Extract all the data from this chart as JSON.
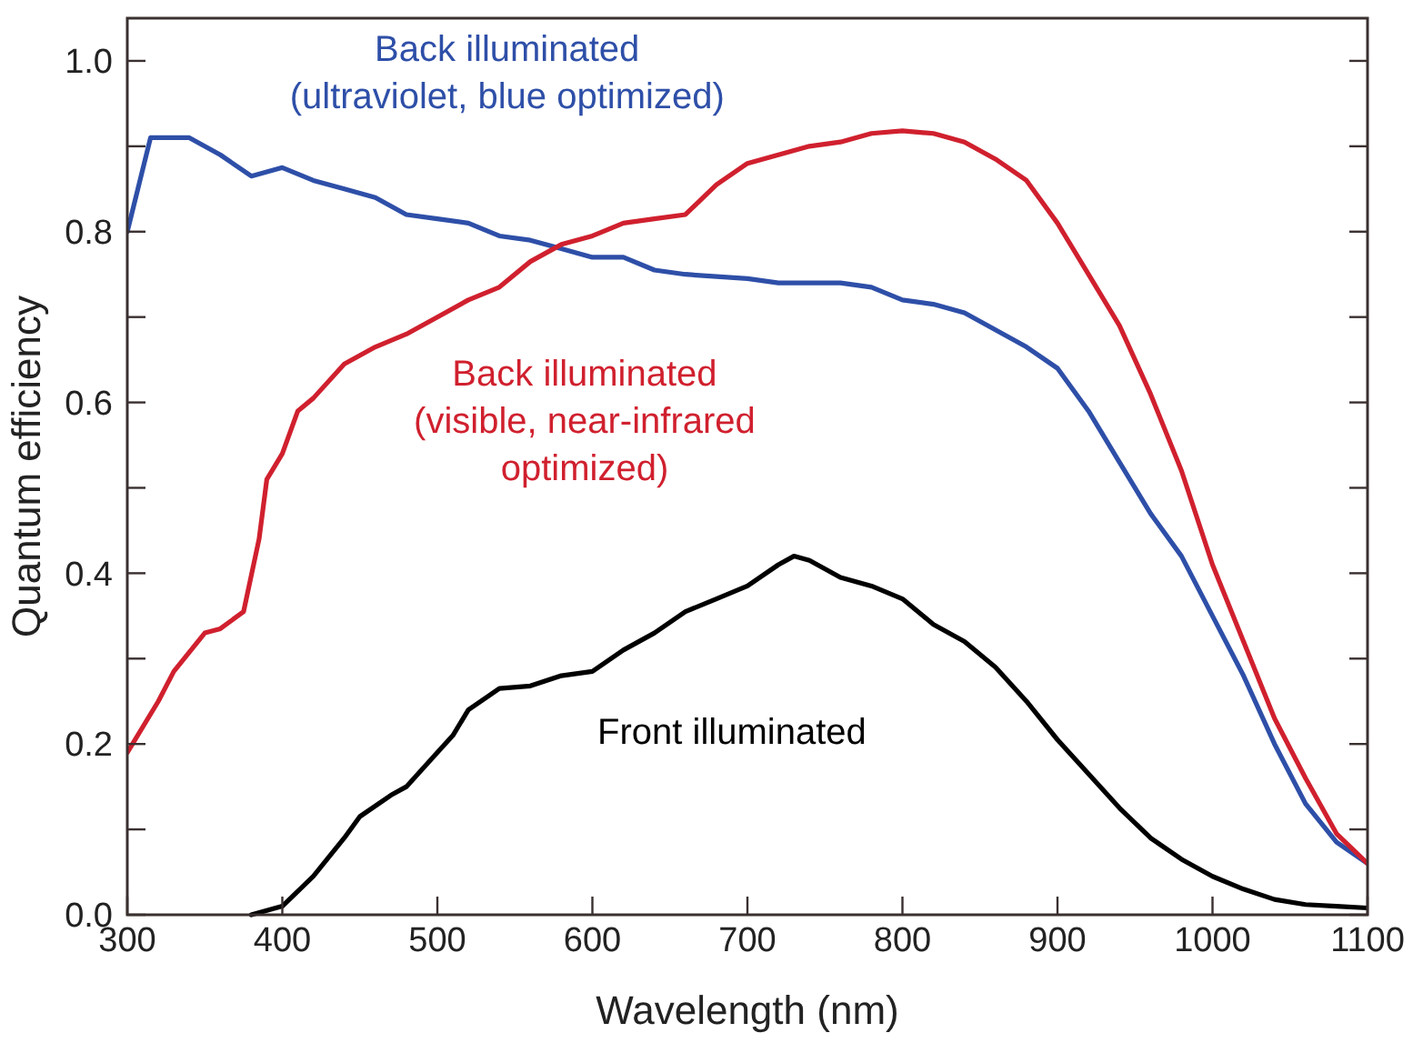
{
  "chart_data": {
    "type": "line",
    "xlabel": "Wavelength (nm)",
    "ylabel": "Quantum efficiency",
    "xlim": [
      300,
      1100
    ],
    "xticks": [
      300,
      400,
      500,
      600,
      700,
      800,
      900,
      1000,
      1100
    ],
    "ylim": [
      0,
      1.05
    ],
    "yticks": [
      {
        "value": 0,
        "label": "0.0"
      },
      {
        "value": 0.1,
        "label": null
      },
      0.2,
      {
        "value": 0.3,
        "label": null
      },
      0.4,
      {
        "value": 0.5,
        "label": null
      },
      0.6,
      {
        "value": 0.7,
        "label": null
      },
      0.8,
      {
        "value": 0.9,
        "label": null
      },
      {
        "value": 1,
        "label": "1.0"
      }
    ],
    "grid": false,
    "marker": "none",
    "line_style": "solid",
    "series": [
      {
        "name": "Back illuminated (ultraviolet, blue optimized)",
        "color": "#2e4fa8",
        "x": [
          300,
          315,
          340,
          360,
          380,
          400,
          420,
          440,
          460,
          480,
          500,
          520,
          540,
          560,
          580,
          600,
          620,
          640,
          660,
          700,
          720,
          760,
          780,
          800,
          820,
          840,
          860,
          880,
          900,
          920,
          940,
          960,
          980,
          1000,
          1020,
          1040,
          1060,
          1080,
          1100
        ],
        "values": [
          0.8,
          0.91,
          0.91,
          0.89,
          0.865,
          0.875,
          0.86,
          0.85,
          0.84,
          0.82,
          0.815,
          0.81,
          0.795,
          0.79,
          0.78,
          0.77,
          0.77,
          0.755,
          0.75,
          0.745,
          0.74,
          0.74,
          0.735,
          0.72,
          0.715,
          0.705,
          0.685,
          0.665,
          0.64,
          0.59,
          0.53,
          0.47,
          0.42,
          0.35,
          0.28,
          0.2,
          0.13,
          0.085,
          0.06
        ]
      },
      {
        "name": "Back illuminated (visible, near-infrared optimized)",
        "color": "#d0202e",
        "x": [
          300,
          320,
          330,
          350,
          360,
          375,
          385,
          390,
          400,
          410,
          420,
          440,
          460,
          480,
          500,
          520,
          540,
          560,
          580,
          600,
          620,
          640,
          660,
          680,
          700,
          720,
          740,
          760,
          780,
          800,
          820,
          840,
          860,
          880,
          900,
          920,
          940,
          960,
          980,
          1000,
          1020,
          1040,
          1060,
          1080,
          1100
        ],
        "values": [
          0.19,
          0.25,
          0.285,
          0.33,
          0.335,
          0.355,
          0.44,
          0.51,
          0.54,
          0.59,
          0.605,
          0.645,
          0.665,
          0.68,
          0.7,
          0.72,
          0.735,
          0.765,
          0.785,
          0.795,
          0.81,
          0.815,
          0.82,
          0.855,
          0.88,
          0.89,
          0.9,
          0.905,
          0.915,
          0.918,
          0.915,
          0.905,
          0.885,
          0.86,
          0.81,
          0.75,
          0.69,
          0.61,
          0.52,
          0.41,
          0.32,
          0.23,
          0.16,
          0.095,
          0.06
        ]
      },
      {
        "name": "Front illuminated",
        "color": "#000000",
        "x": [
          380,
          400,
          420,
          440,
          450,
          470,
          480,
          500,
          510,
          520,
          540,
          560,
          580,
          600,
          620,
          640,
          660,
          680,
          700,
          720,
          730,
          740,
          760,
          780,
          800,
          820,
          840,
          860,
          880,
          900,
          920,
          940,
          960,
          980,
          1000,
          1020,
          1040,
          1060,
          1080,
          1100
        ],
        "values": [
          0,
          0.01,
          0.045,
          0.09,
          0.115,
          0.14,
          0.15,
          0.19,
          0.21,
          0.24,
          0.265,
          0.268,
          0.28,
          0.285,
          0.31,
          0.33,
          0.355,
          0.37,
          0.385,
          0.41,
          0.42,
          0.415,
          0.395,
          0.385,
          0.37,
          0.34,
          0.32,
          0.29,
          0.25,
          0.205,
          0.165,
          0.125,
          0.09,
          0.065,
          0.045,
          0.03,
          0.018,
          0.012,
          0.01,
          0.008
        ]
      }
    ]
  }
}
